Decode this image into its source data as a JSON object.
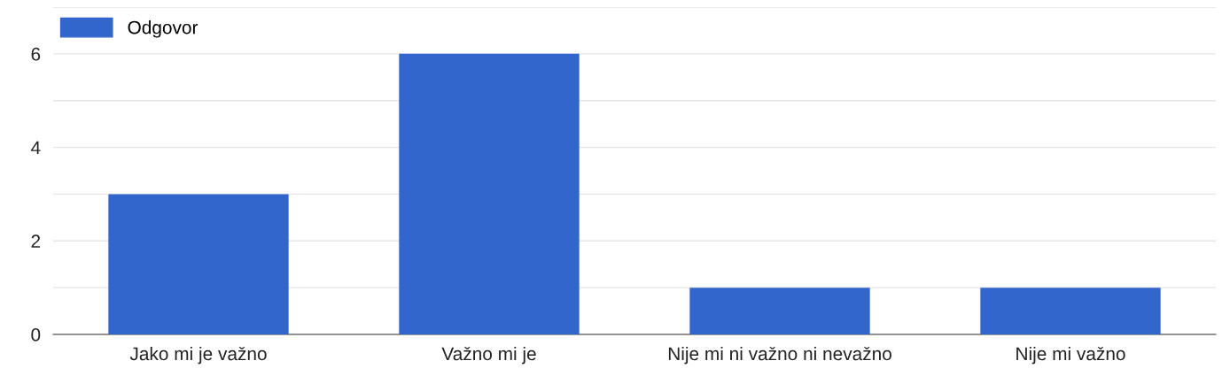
{
  "chart_data": {
    "type": "bar",
    "categories": [
      "Jako mi je važno",
      "Važno mi je",
      "Nije mi ni važno ni nevažno",
      "Nije mi važno"
    ],
    "series": [
      {
        "name": "Odgovor",
        "color": "#3366cc",
        "values": [
          3,
          6,
          1,
          1
        ]
      }
    ],
    "ylim": [
      0,
      7
    ],
    "yticks": [
      0,
      {
        "value": 1,
        "label": null
      },
      2,
      {
        "value": 3,
        "label": null
      },
      4,
      {
        "value": 5,
        "label": null
      },
      6,
      {
        "value": 7,
        "label": null
      }
    ],
    "grid": "y",
    "legend": "top left"
  }
}
